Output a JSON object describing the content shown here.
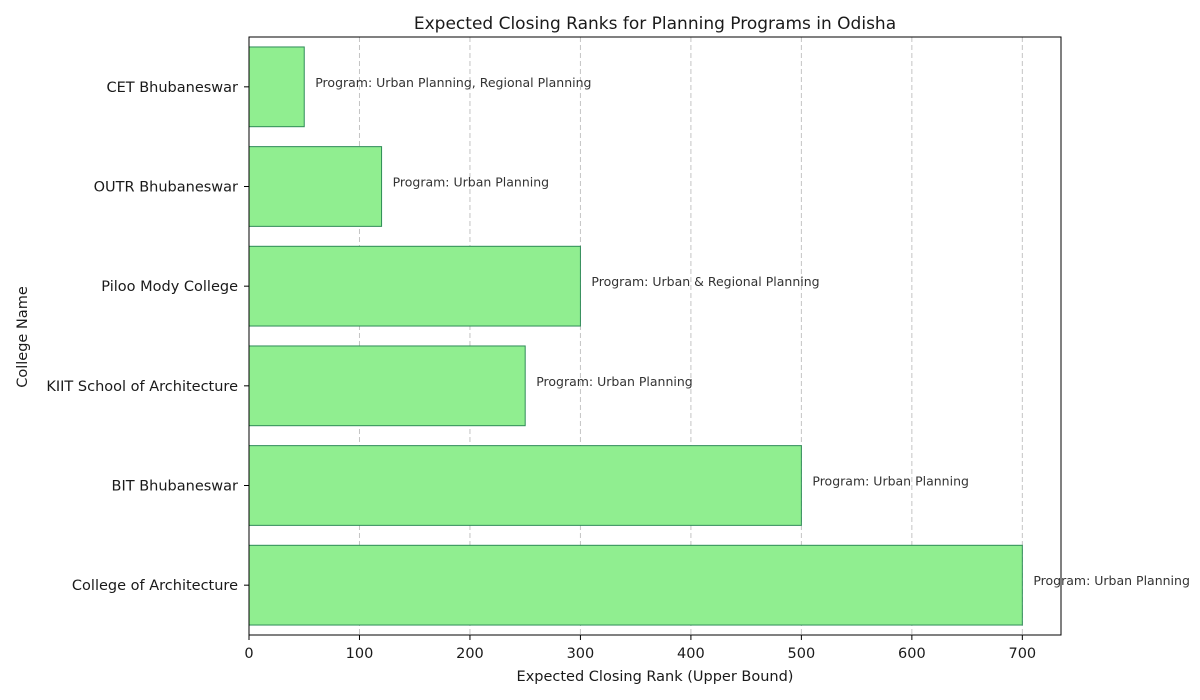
{
  "chart_data": {
    "type": "bar",
    "orientation": "horizontal",
    "title": "Expected Closing Ranks for Planning Programs in Odisha",
    "xlabel": "Expected Closing Rank (Upper Bound)",
    "ylabel": "College Name",
    "xlim": [
      0,
      735
    ],
    "xticks": [
      0,
      100,
      200,
      300,
      400,
      500,
      600,
      700
    ],
    "grid": {
      "x": true,
      "y": false
    },
    "colors": {
      "bar_fill": "#90ee90",
      "bar_edge": "#2e8b57",
      "grid": "#c4c4c4"
    },
    "categories": [
      "CET Bhubaneswar",
      "OUTR Bhubaneswar",
      "Piloo Mody College",
      "KIIT School of Architecture",
      "BIT Bhubaneswar",
      "College of Architecture"
    ],
    "values": [
      50,
      120,
      300,
      250,
      500,
      700
    ],
    "annotations": [
      "Program: Urban Planning, Regional Planning",
      "Program: Urban Planning",
      "Program: Urban & Regional Planning",
      "Program: Urban Planning",
      "Program: Urban Planning",
      "Program: Urban Planning"
    ]
  }
}
